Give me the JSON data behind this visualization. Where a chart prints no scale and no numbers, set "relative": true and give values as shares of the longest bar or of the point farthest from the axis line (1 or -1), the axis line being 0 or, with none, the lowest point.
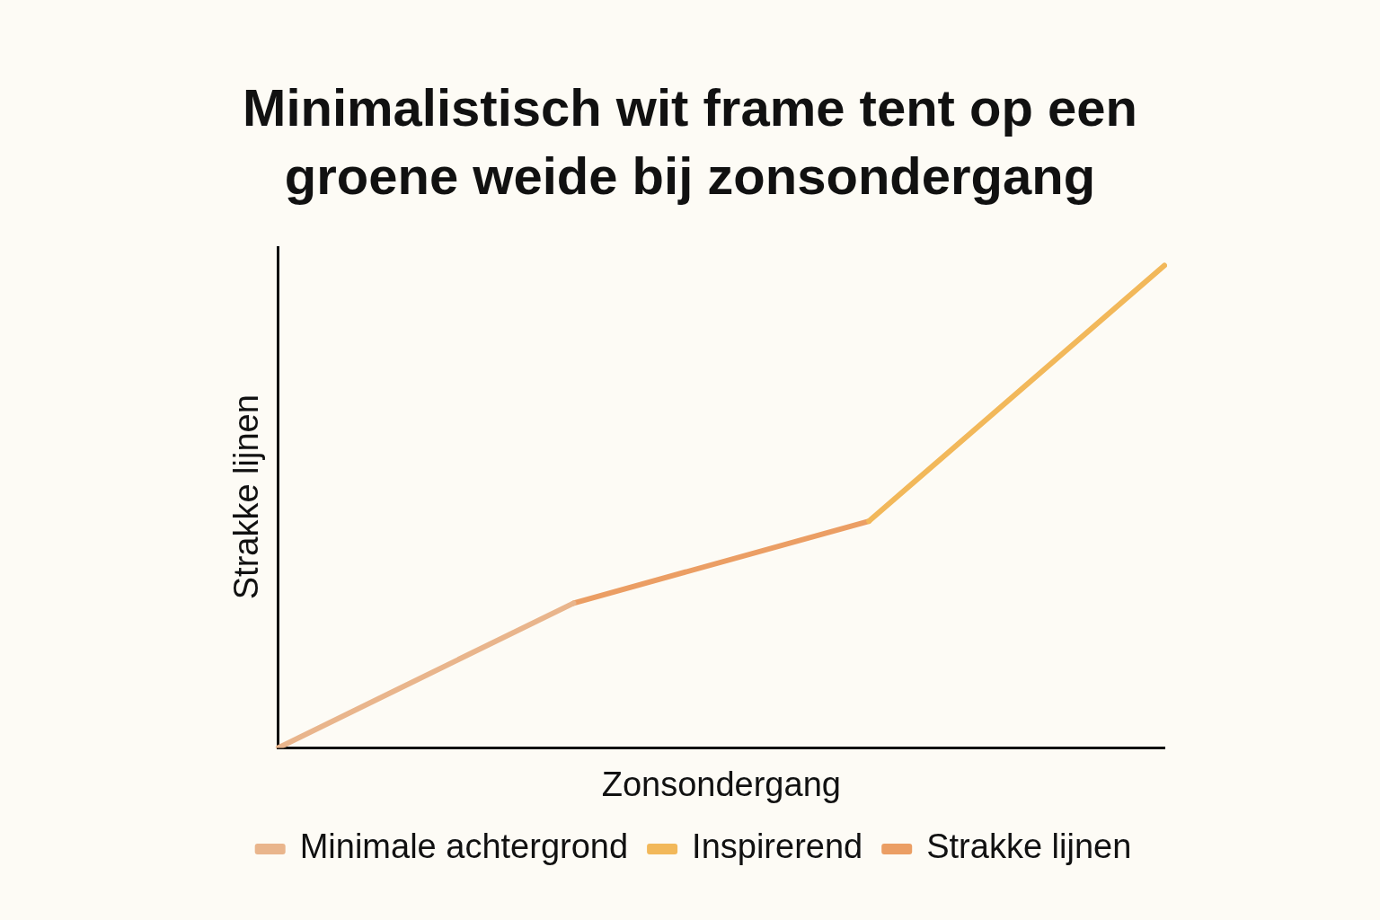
{
  "chart_data": {
    "type": "line",
    "title": "Minimalistisch wit frame tent op een groene weide bij zonsondergang",
    "xlabel": "Zonsondergang",
    "ylabel": "Strakke lijnen",
    "relative": true,
    "categories": [
      null,
      null,
      null,
      null
    ],
    "grid": false,
    "legend": "bottom",
    "marker": "none",
    "line_style": "solid",
    "series": [
      {
        "name": "Minimale achtergrond",
        "color": "#e9b58c",
        "values": [
          0,
          0.3,
          null,
          null
        ]
      },
      {
        "name": "Inspirerend",
        "color": "#f2b85a",
        "values": [
          null,
          null,
          0.47,
          1
        ]
      },
      {
        "name": "Strakke lijnen",
        "color": "#eb9e64",
        "values": [
          null,
          0.3,
          0.47,
          null
        ]
      }
    ]
  }
}
